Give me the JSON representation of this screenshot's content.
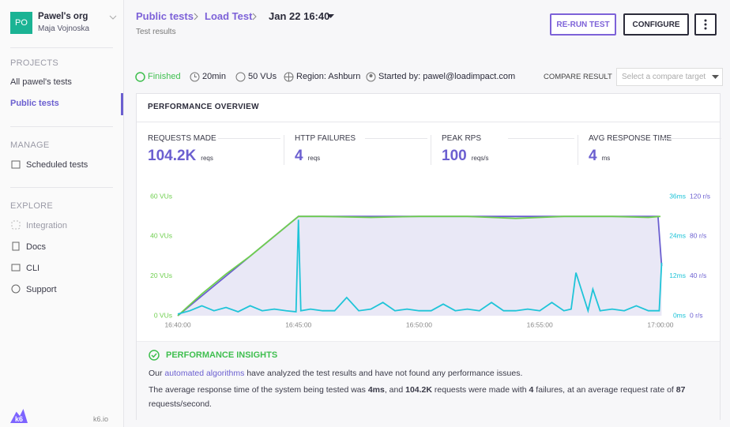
{
  "sidebar": {
    "avatar": "PO",
    "org": "Pawel's org",
    "user": "Maja Vojnoska",
    "sections": [
      {
        "heading": "PROJECTS",
        "items": [
          "All pawel's tests",
          "Public tests"
        ]
      },
      {
        "heading": "MANAGE",
        "items": [
          "Scheduled tests"
        ]
      },
      {
        "heading": "EXPLORE",
        "items": [
          "Integration",
          "Docs",
          "CLI",
          "Support"
        ]
      }
    ],
    "logo": "k6",
    "footer": "k6.io"
  },
  "header": {
    "breadcrumb": [
      "Public tests",
      "Load Test",
      "Jan 22 16:40"
    ],
    "subtitle": "Test results",
    "buttons": [
      "RE-RUN TEST",
      "CONFIGURE"
    ]
  },
  "status": {
    "items": [
      "Finished",
      "20min",
      "50 VUs",
      "Region: Ashburn",
      "Started by: pawel@loadimpact.com"
    ],
    "compare_label": "COMPARE RESULT",
    "compare_placeholder": "Select a compare target"
  },
  "overview": {
    "title": "PERFORMANCE OVERVIEW",
    "metrics": [
      {
        "label": "REQUESTS MADE",
        "value": "104.2K",
        "unit": "reqs"
      },
      {
        "label": "HTTP FAILURES",
        "value": "4",
        "unit": "reqs"
      },
      {
        "label": "PEAK RPS",
        "value": "100",
        "unit": "reqs/s"
      },
      {
        "label": "AVG RESPONSE TIME",
        "value": "4",
        "unit": "ms"
      }
    ]
  },
  "chart_data": {
    "type": "line",
    "xlim": [
      0,
      20.1
    ],
    "xticks": [
      {
        "value": 0,
        "label": "16:40:00"
      },
      {
        "value": 5,
        "label": "16:45:00"
      },
      {
        "value": 10,
        "label": "16:50:00"
      },
      {
        "value": 15,
        "label": "16:55:00"
      },
      {
        "value": 20,
        "label": "17:00:00"
      }
    ],
    "ylim": [
      0,
      60
    ],
    "yticks": [
      {
        "value": 0,
        "label": "0 VUs"
      },
      {
        "value": 20,
        "label": "20 VUs"
      },
      {
        "value": 40,
        "label": "40 VUs"
      },
      {
        "value": 60,
        "label": "60 VUs"
      }
    ],
    "y2lim": [
      0,
      36
    ],
    "y2ticks": [
      {
        "value": 0,
        "label": "0ms"
      },
      {
        "value": 12,
        "label": "12ms"
      },
      {
        "value": 24,
        "label": "24ms"
      },
      {
        "value": 36,
        "label": "36ms"
      }
    ],
    "y3lim": [
      0,
      120
    ],
    "y3ticks": [
      {
        "value": 0,
        "label": "0 r/s"
      },
      {
        "value": 40,
        "label": "40 r/s"
      },
      {
        "value": 80,
        "label": "80 r/s"
      },
      {
        "value": 120,
        "label": "120 r/s"
      }
    ],
    "grid": false,
    "series": [
      {
        "color": "#6b5fd0",
        "fill": "#e4e2f4",
        "axis": "y",
        "x": [
          0,
          5,
          10,
          15,
          19.9,
          20.05
        ],
        "values": [
          0,
          50,
          50,
          50,
          50,
          25
        ]
      },
      {
        "color": "#6fcf4f",
        "axis": "y3",
        "x": [
          0,
          1,
          2,
          3,
          4,
          5,
          6,
          8,
          10,
          12,
          14,
          16,
          18,
          19.5,
          20
        ],
        "values": [
          0,
          22,
          42,
          60,
          80,
          100,
          100,
          99,
          100,
          100,
          98,
          100,
          100,
          99,
          100
        ]
      },
      {
        "color": "#1fc4d8",
        "axis": "y2",
        "x": [
          0,
          0.5,
          1,
          1.5,
          2,
          2.5,
          3,
          3.5,
          4,
          4.5,
          4.9,
          5.0,
          5.1,
          5.5,
          6,
          6.5,
          7,
          7.5,
          8,
          8.5,
          9,
          9.5,
          10,
          10.5,
          11,
          11.5,
          12,
          12.5,
          13,
          13.5,
          14,
          14.5,
          15,
          15.5,
          16,
          16.3,
          16.5,
          17,
          17.2,
          17.5,
          18,
          18.5,
          19,
          19.5,
          19.8,
          19.95,
          20.05
        ],
        "values": [
          0.5,
          1.5,
          3,
          1.5,
          2.5,
          1.2,
          3,
          1.5,
          2,
          1.5,
          1.2,
          29,
          1.5,
          2,
          1.5,
          1.5,
          5.5,
          1.5,
          2,
          4,
          1.5,
          2,
          1.5,
          1.5,
          3.5,
          1.5,
          2,
          1.5,
          4,
          1.5,
          1.5,
          2,
          1.5,
          4,
          1.5,
          2,
          13,
          1.5,
          8,
          1.5,
          2,
          1.5,
          3,
          1.5,
          1.5,
          1.5,
          16
        ]
      }
    ]
  },
  "insights": {
    "title": "PERFORMANCE INSIGHTS",
    "lines": [
      [
        "Our ",
        "automated algorithms",
        " have analyzed the test results and have not found any performance issues."
      ],
      [
        "The average response time of the system being tested was ",
        "4ms",
        ", and ",
        "104.2K",
        " requests were made with ",
        "4",
        " failures, at an average request rate of ",
        "87",
        " requests/second."
      ]
    ]
  }
}
